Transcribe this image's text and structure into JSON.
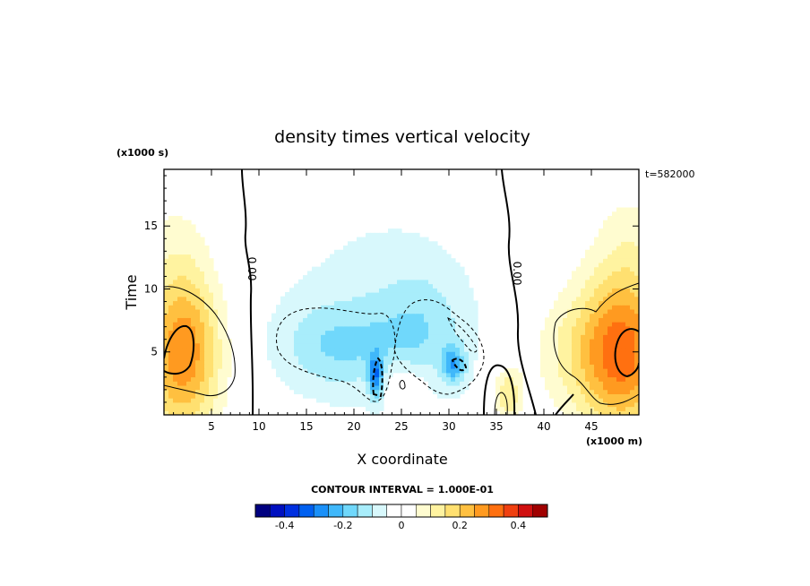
{
  "chart_data": {
    "type": "heatmap",
    "title": "density times vertical velocity",
    "xlabel": "X coordinate",
    "ylabel": "Time",
    "x_unit": "(x1000 m)",
    "y_unit": "(x1000 s)",
    "time_stamp": "t=582000",
    "xlim": [
      0,
      50
    ],
    "ylim": [
      0,
      19.5
    ],
    "x_ticks": [
      5,
      10,
      15,
      20,
      25,
      30,
      35,
      40,
      45
    ],
    "y_ticks": [
      5,
      10,
      15
    ],
    "contour_interval_text": "CONTOUR INTERVAL = 1.000E-01",
    "contour_label": "0.00",
    "colorbar": {
      "range": [
        -0.5,
        0.5
      ],
      "ticks": [
        -0.4,
        -0.2,
        0,
        0.2,
        0.4
      ],
      "tick_labels": [
        "-0.4",
        "-0.2",
        "0",
        "0.2",
        "0.4"
      ],
      "colors": [
        "#000080",
        "#0010c0",
        "#0030e0",
        "#0060f0",
        "#1a90f8",
        "#40b8fa",
        "#70d8fb",
        "#a8edfb",
        "#d8f8fc",
        "#ffffff",
        "#ffffff",
        "#fffcd0",
        "#fff3a0",
        "#ffe070",
        "#ffc040",
        "#ff9a20",
        "#ff7010",
        "#f04010",
        "#d01010",
        "#a00000"
      ]
    },
    "anomalies": [
      {
        "x": 2.0,
        "y": 5.0,
        "rx": 4.0,
        "ry": 6.5,
        "value": 0.3
      },
      {
        "x": 48.5,
        "y": 5.0,
        "rx": 4.5,
        "ry": 6.5,
        "value": 0.3
      },
      {
        "x": 43.5,
        "y": 5.0,
        "rx": 5.0,
        "ry": 5.0,
        "value": 0.1
      },
      {
        "x": 1.0,
        "y": 14.0,
        "rx": 4.0,
        "ry": 5.0,
        "value": 0.04
      },
      {
        "x": 49.0,
        "y": 14.0,
        "rx": 4.0,
        "ry": 5.0,
        "value": 0.05
      },
      {
        "x": 36.2,
        "y": 1.6,
        "rx": 1.5,
        "ry": 2.2,
        "value": 0.15
      },
      {
        "x": 22.0,
        "y": 9.0,
        "rx": 13.0,
        "ry": 11.0,
        "value": -0.06
      },
      {
        "x": 18.0,
        "y": 5.5,
        "rx": 6.0,
        "ry": 3.5,
        "value": -0.11
      },
      {
        "x": 27.0,
        "y": 6.5,
        "rx": 5.0,
        "ry": 5.0,
        "value": -0.1
      },
      {
        "x": 22.3,
        "y": 3.0,
        "rx": 0.8,
        "ry": 1.8,
        "value": -0.24
      },
      {
        "x": 30.5,
        "y": 4.0,
        "rx": 1.2,
        "ry": 1.5,
        "value": -0.18
      },
      {
        "x": 25.0,
        "y": 2.5,
        "rx": 3.0,
        "ry": 2.0,
        "value": 0.09
      }
    ]
  }
}
